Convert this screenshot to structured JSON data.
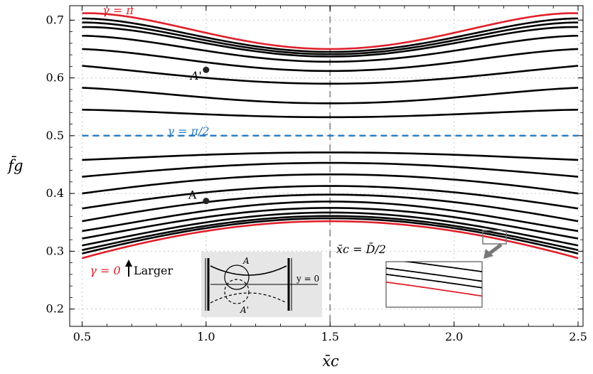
{
  "colors": {
    "boundary_curves": "#e0202a",
    "midline": "#2a7bc0",
    "curves": "#000000",
    "center_line": "#999999",
    "inset_bg": "#e6e6e6"
  },
  "chart_data": {
    "type": "line",
    "xlabel": "x̄c",
    "ylabel": "f̄g",
    "xlim": [
      0.45,
      2.52
    ],
    "ylim": [
      0.17,
      0.725
    ],
    "xticks": [
      "0.5",
      "1.0",
      "1.5",
      "2.0",
      "2.5"
    ],
    "yticks": [
      "0.2",
      "0.3",
      "0.4",
      "0.5",
      "0.6",
      "0.7"
    ],
    "x": [
      0.5,
      1.0,
      1.5,
      2.0,
      2.5
    ],
    "series": [
      {
        "name": "γ = 0",
        "color": "#e0202a",
        "values": [
          0.288,
          0.335,
          0.352,
          0.335,
          0.288
        ]
      },
      {
        "values": [
          0.296,
          0.34,
          0.357,
          0.34,
          0.296
        ]
      },
      {
        "values": [
          0.302,
          0.344,
          0.361,
          0.344,
          0.302
        ]
      },
      {
        "values": [
          0.31,
          0.35,
          0.367,
          0.35,
          0.31
        ]
      },
      {
        "values": [
          0.322,
          0.359,
          0.375,
          0.359,
          0.322
        ]
      },
      {
        "values": [
          0.335,
          0.37,
          0.386,
          0.37,
          0.335
        ]
      },
      {
        "values": [
          0.352,
          0.385,
          0.398,
          0.385,
          0.352
        ]
      },
      {
        "values": [
          0.374,
          0.402,
          0.413,
          0.402,
          0.374
        ]
      },
      {
        "values": [
          0.4,
          0.424,
          0.433,
          0.424,
          0.4
        ]
      },
      {
        "values": [
          0.429,
          0.446,
          0.453,
          0.446,
          0.429
        ]
      },
      {
        "values": [
          0.458,
          0.467,
          0.471,
          0.467,
          0.458
        ]
      },
      {
        "name": "γ = π/2",
        "color": "#2a7bc0",
        "dashed": true,
        "values": [
          0.5,
          0.5,
          0.5,
          0.5,
          0.5
        ]
      },
      {
        "values": [
          0.545,
          0.537,
          0.532,
          0.537,
          0.545
        ]
      },
      {
        "values": [
          0.583,
          0.566,
          0.556,
          0.566,
          0.583
        ]
      },
      {
        "values": [
          0.621,
          0.6,
          0.59,
          0.6,
          0.621
        ]
      },
      {
        "values": [
          0.65,
          0.627,
          0.612,
          0.627,
          0.65
        ]
      },
      {
        "values": [
          0.673,
          0.647,
          0.628,
          0.647,
          0.673
        ]
      },
      {
        "values": [
          0.688,
          0.66,
          0.637,
          0.66,
          0.688
        ]
      },
      {
        "values": [
          0.696,
          0.665,
          0.641,
          0.665,
          0.696
        ]
      },
      {
        "values": [
          0.703,
          0.67,
          0.645,
          0.67,
          0.703
        ]
      },
      {
        "name": "γ = π",
        "color": "#e0202a",
        "values": [
          0.712,
          0.678,
          0.65,
          0.678,
          0.712
        ]
      }
    ],
    "vline": {
      "x": 1.5
    },
    "points": [
      {
        "label": "A'",
        "x": 1.0,
        "y": 0.614
      },
      {
        "label": "A",
        "x": 1.0,
        "y": 0.387
      }
    ],
    "annotations": {
      "gamma_pi": "γ = π",
      "gamma_half_pi": "γ = π/2",
      "gamma_zero": "γ = 0",
      "larger": "Larger",
      "center_label": "x̄c = D̄/2"
    },
    "inset_diagram": {
      "label_A": "A",
      "label_A_prime": "A'",
      "label_y0": "y = 0"
    }
  }
}
